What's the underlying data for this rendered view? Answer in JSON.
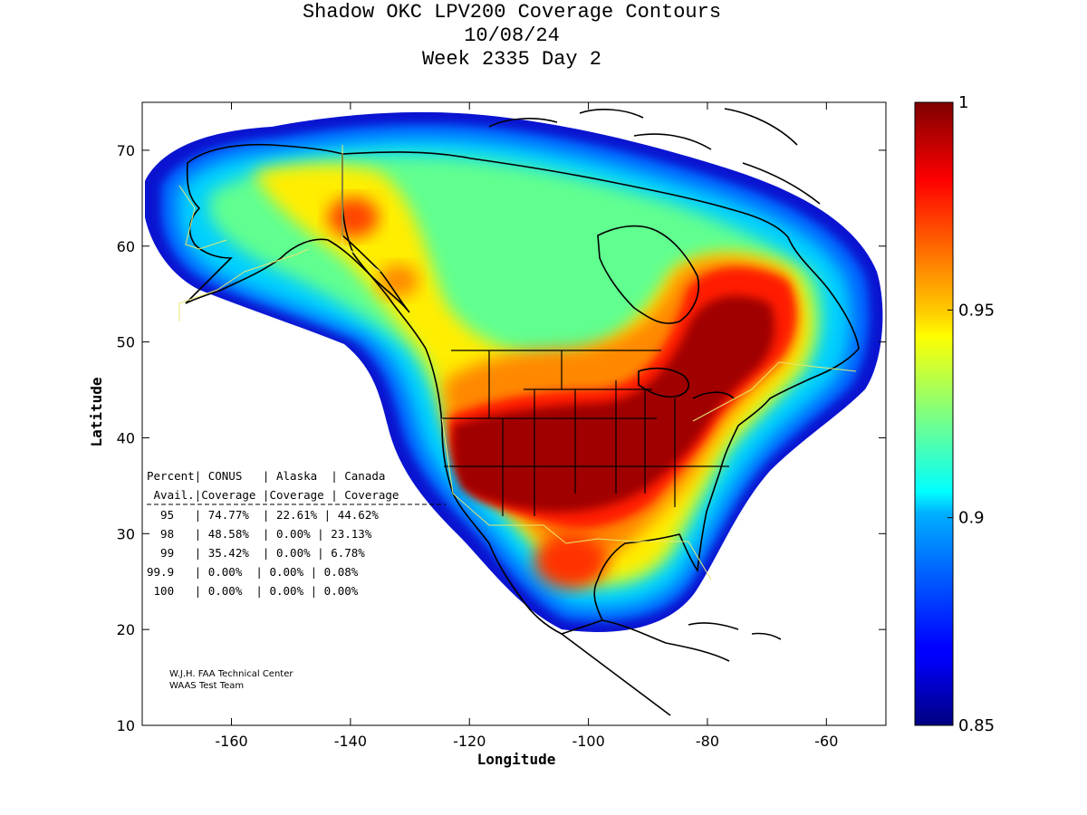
{
  "title": {
    "line1": "Shadow OKC LPV200 Coverage Contours",
    "line2": "10/08/24",
    "line3": "Week 2335 Day 2"
  },
  "axes": {
    "xlabel": "Longitude",
    "ylabel": "Latitude",
    "x_ticks": [
      "-160",
      "-140",
      "-120",
      "-100",
      "-80",
      "-60"
    ],
    "y_ticks": [
      "70",
      "60",
      "50",
      "40",
      "30",
      "20",
      "10"
    ],
    "xlim": [
      -175,
      -50
    ],
    "ylim": [
      10,
      75
    ]
  },
  "colorbar": {
    "min": 0.85,
    "max": 1,
    "labels": [
      "1",
      "0.95",
      "0.9",
      "0.85"
    ],
    "colormap": "jet"
  },
  "coverage_table": {
    "header1": "Percent| CONUS   | Alaska  | Canada",
    "header2": " Avail.|Coverage |Coverage | Coverage",
    "rows": [
      "  95   | 74.77%  | 22.61% | 44.62%",
      "  98   | 48.58%  | 0.00% | 23.13%",
      "  99   | 35.42%  | 0.00% | 6.78%",
      "99.9   | 0.00%  | 0.00% | 0.08%",
      " 100   | 0.00%  | 0.00% | 0.00%"
    ]
  },
  "credit": {
    "line1": "W.J.H. FAA Technical Center",
    "line2": "WAAS Test Team"
  }
}
